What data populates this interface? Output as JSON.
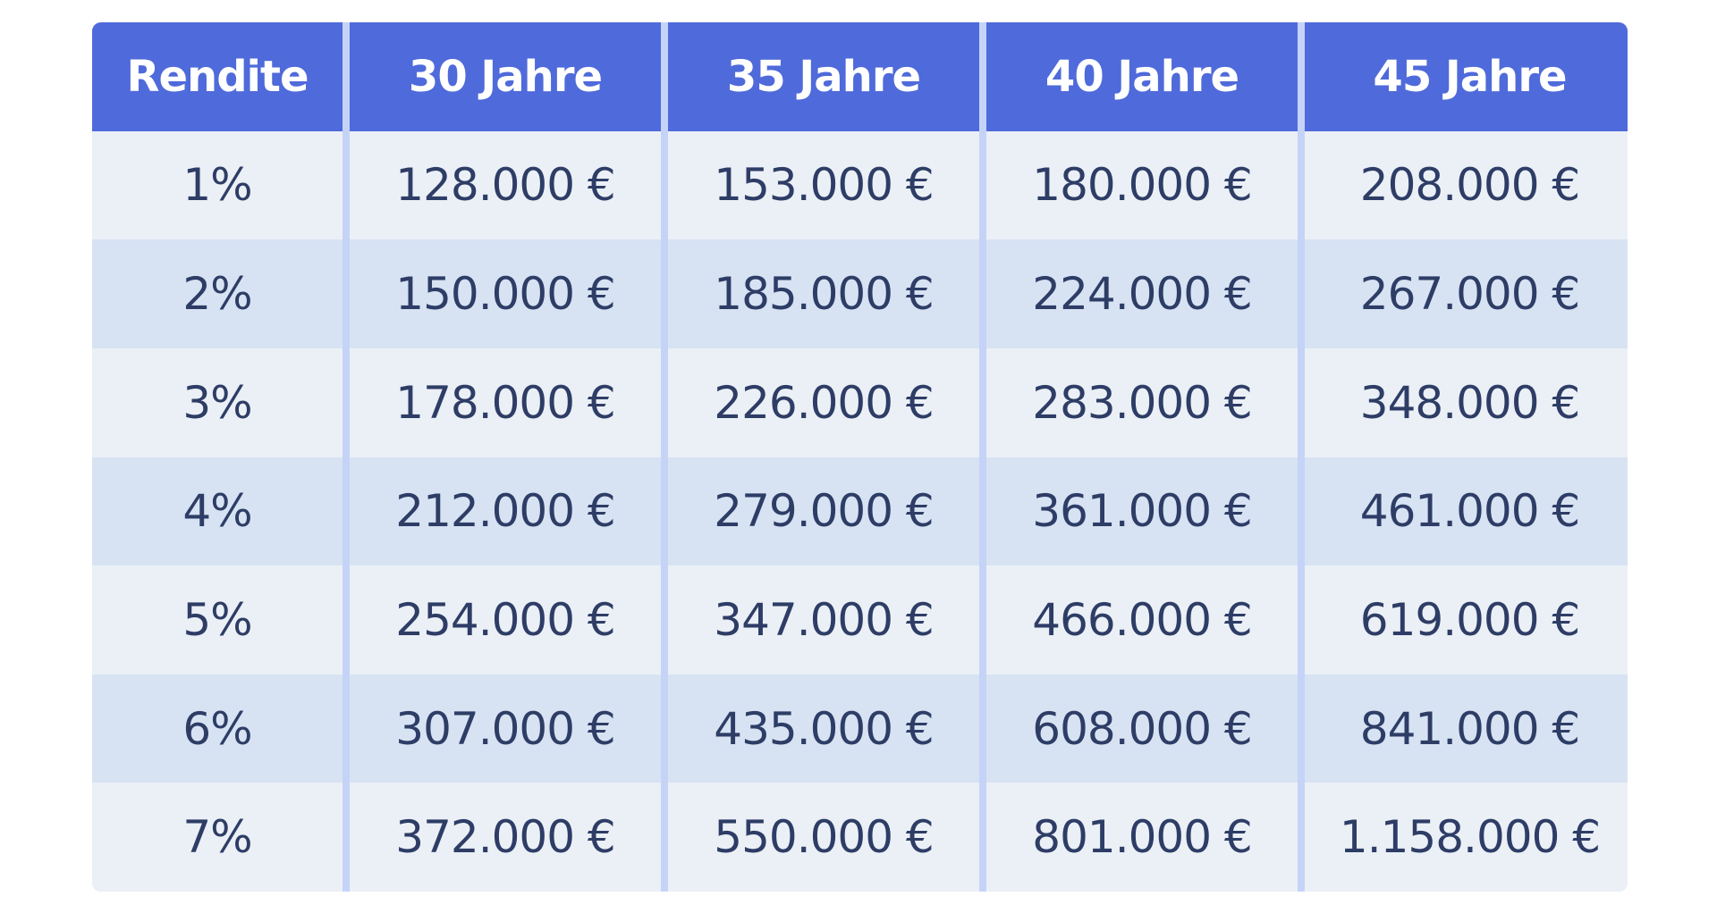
{
  "chart_data": {
    "type": "table",
    "columns": [
      "Rendite",
      "30 Jahre",
      "35 Jahre",
      "40 Jahre",
      "45 Jahre"
    ],
    "rows": [
      [
        "1%",
        "128.000 €",
        "153.000 €",
        "180.000 €",
        "208.000 €"
      ],
      [
        "2%",
        "150.000 €",
        "185.000 €",
        "224.000 €",
        "267.000 €"
      ],
      [
        "3%",
        "178.000 €",
        "226.000 €",
        "283.000 €",
        "348.000 €"
      ],
      [
        "4%",
        "212.000 €",
        "279.000 €",
        "361.000 €",
        "461.000 €"
      ],
      [
        "5%",
        "254.000 €",
        "347.000 €",
        "466.000 €",
        "619.000 €"
      ],
      [
        "6%",
        "307.000 €",
        "435.000 €",
        "608.000 €",
        "841.000 €"
      ],
      [
        "7%",
        "372.000 €",
        "550.000 €",
        "801.000 €",
        "1.158.000 €"
      ]
    ]
  },
  "colors": {
    "header_bg": "#4f6ada",
    "header_text": "#ffffff",
    "row_light": "#ebf0f6",
    "row_dark": "#d7e3f3",
    "divider": "#c5d3f7",
    "cell_text": "#2e3d66"
  }
}
